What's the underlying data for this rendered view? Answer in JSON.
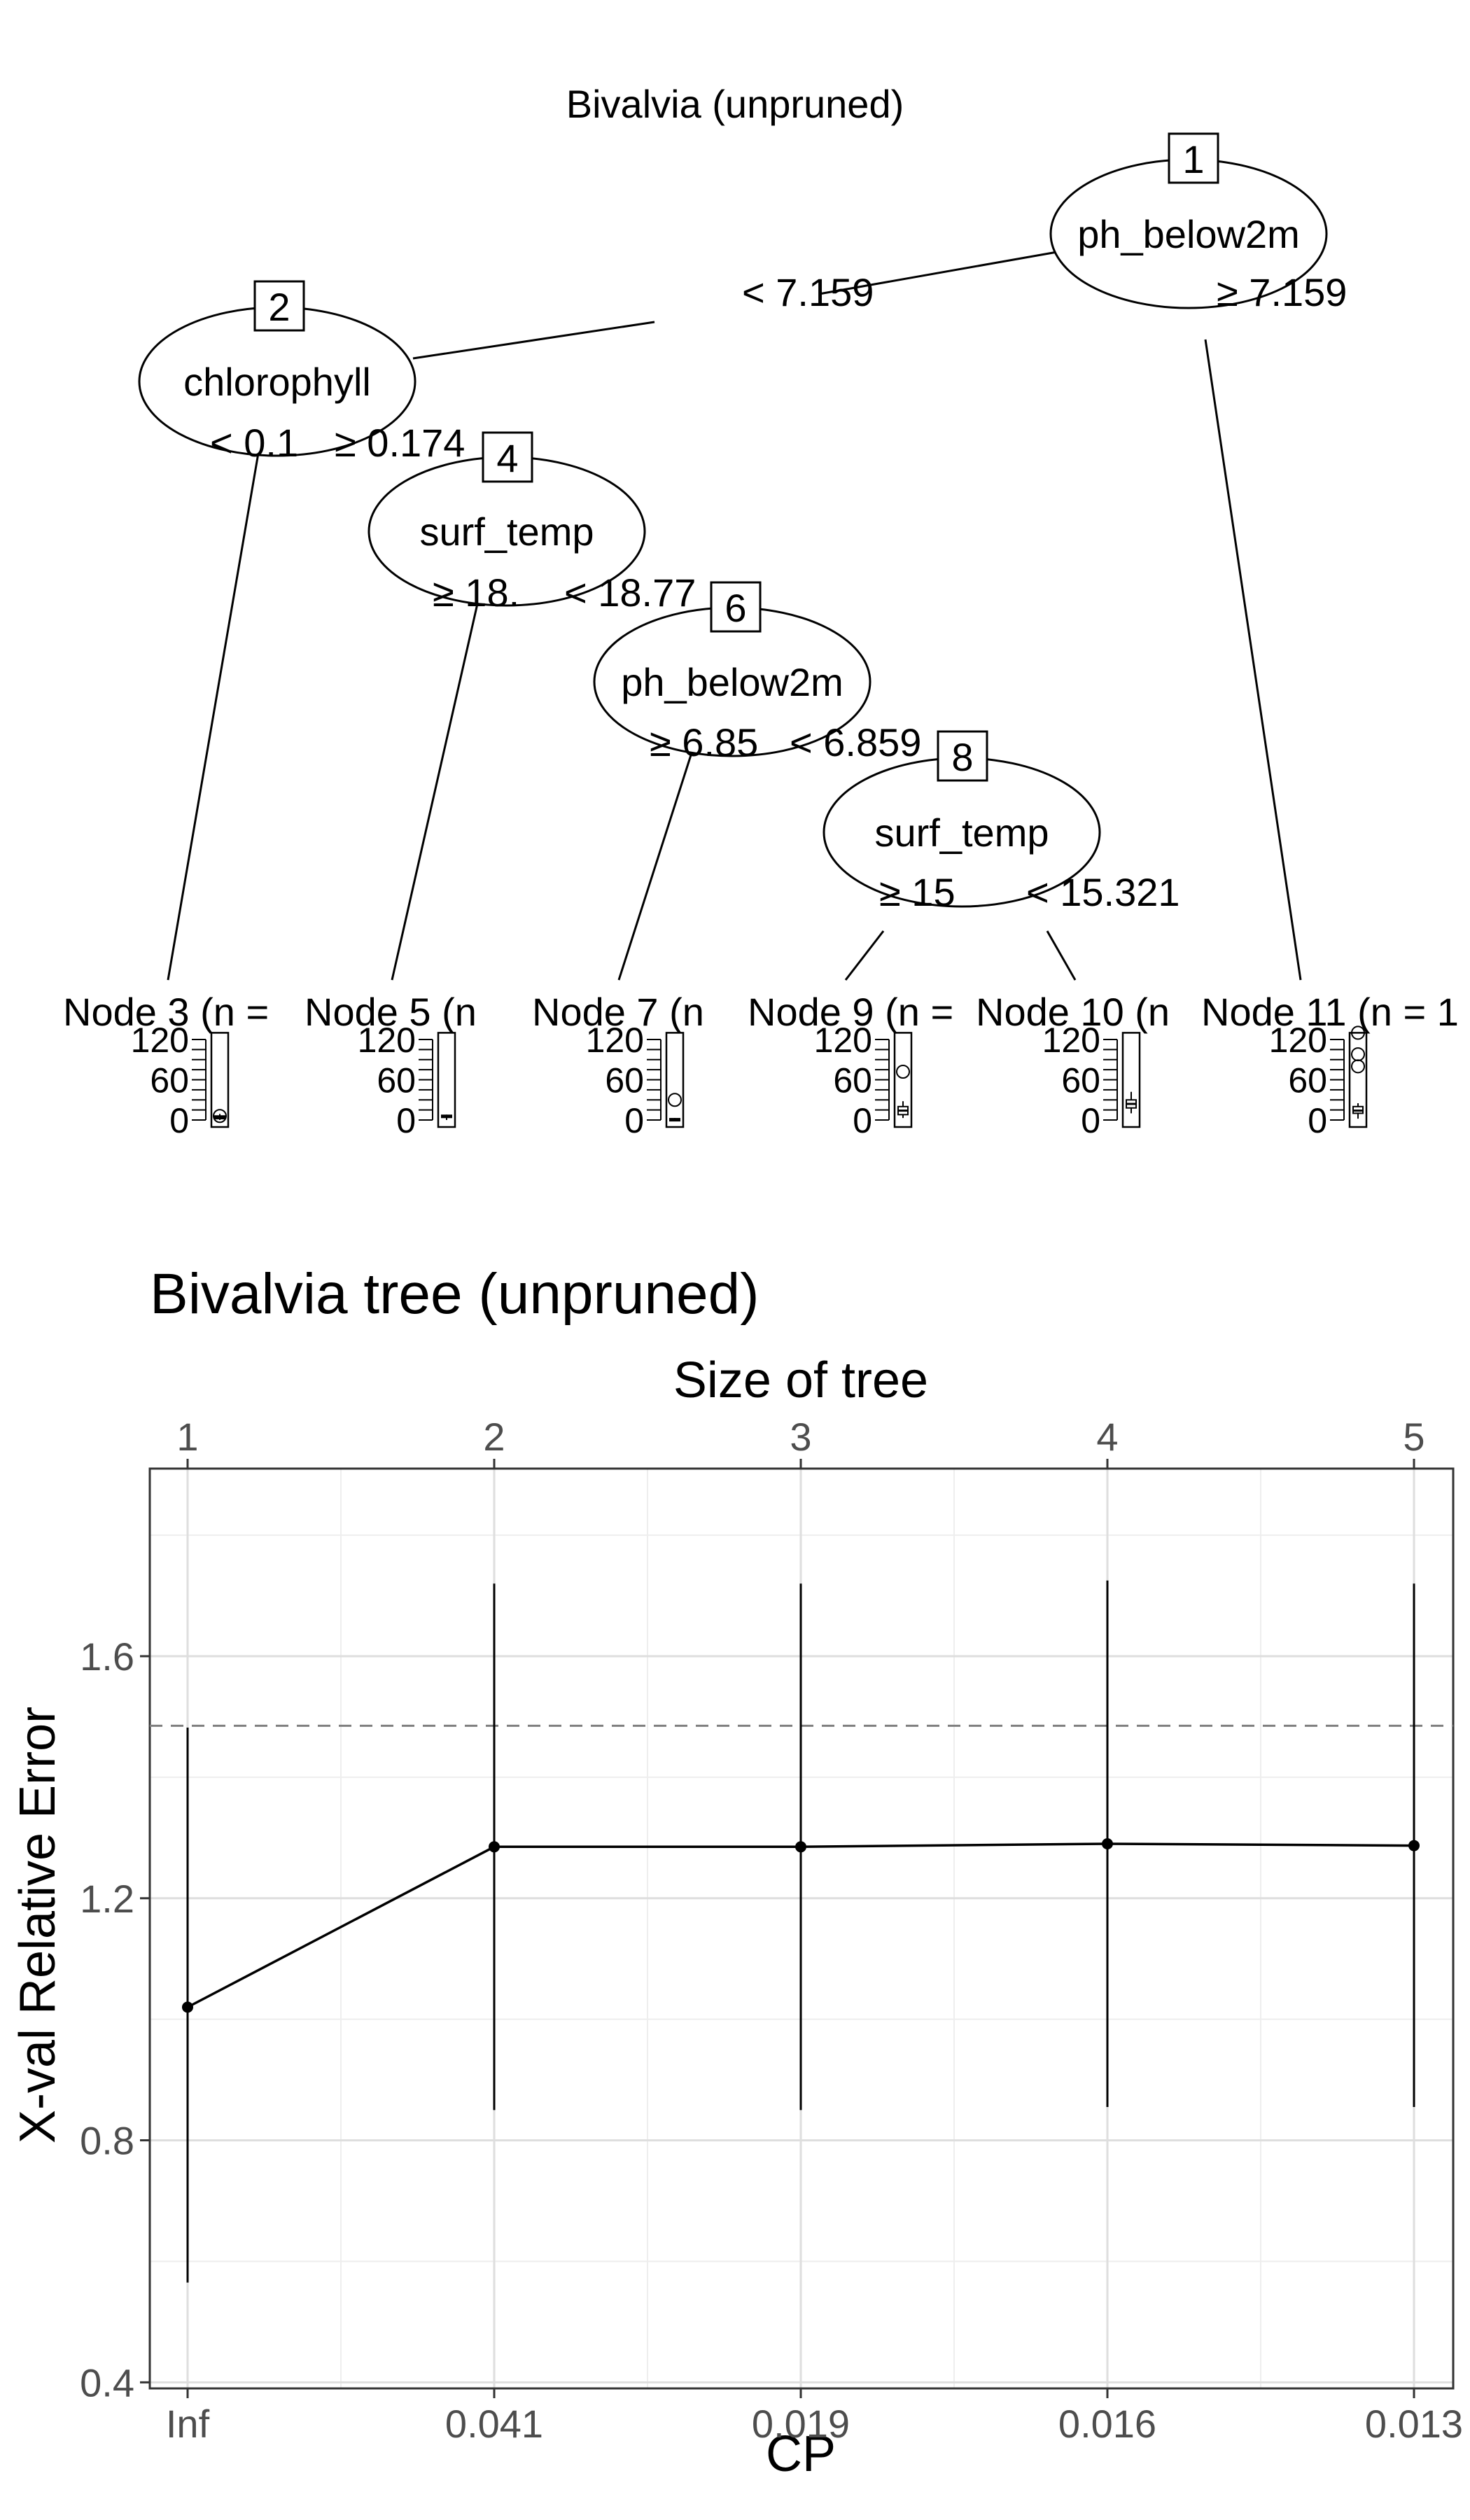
{
  "chart_data": [
    {
      "type": "tree",
      "title": "Bivalvia (unpruned)",
      "inner_nodes": [
        {
          "id": "1",
          "variable": "ph_below2m",
          "left_label": "< 7.159",
          "right_label": "≥ 7.159"
        },
        {
          "id": "2",
          "variable": "chlorophyll",
          "left_label": "< 0.1",
          "right_label": "≥ 0.174"
        },
        {
          "id": "4",
          "variable": "surf_temp",
          "left_label": "≥ 18.",
          "right_label": "< 18.77"
        },
        {
          "id": "6",
          "variable": "ph_below2m",
          "left_label": "≥ 6.85",
          "right_label": "< 6.859"
        },
        {
          "id": "8",
          "variable": "surf_temp",
          "left_label": "≥ 15",
          "right_label": "< 15.321"
        }
      ],
      "terminal_nodes": [
        {
          "label": "Node 3 (n =",
          "ticks": [
            "120",
            "60",
            "0"
          ],
          "box": {
            "low": 0,
            "q1": 2,
            "median": 4,
            "q3": 6,
            "high": 9
          },
          "outliers": [
            6
          ]
        },
        {
          "label": "Node 5 (n",
          "ticks": [
            "120",
            "60",
            "0"
          ],
          "box": {
            "low": 0,
            "q1": 5,
            "median": 6,
            "q3": 7,
            "high": 8
          },
          "outliers": []
        },
        {
          "label": "Node 7 (n",
          "ticks": [
            "120",
            "60",
            "0"
          ],
          "box": {
            "low": 0,
            "q1": 0,
            "median": 1,
            "q3": 2,
            "high": 3
          },
          "outliers": [
            30
          ]
        },
        {
          "label": "Node 9 (n =",
          "ticks": [
            "120",
            "60",
            "0"
          ],
          "box": {
            "low": 3,
            "q1": 8,
            "median": 14,
            "q3": 20,
            "high": 28
          },
          "outliers": [
            72
          ]
        },
        {
          "label": "Node 10 (n",
          "ticks": [
            "120",
            "60",
            "0"
          ],
          "box": {
            "low": 10,
            "q1": 18,
            "median": 24,
            "q3": 30,
            "high": 42
          },
          "outliers": []
        },
        {
          "label": "Node 11 (n = 1",
          "ticks": [
            "120",
            "60",
            "0"
          ],
          "box": {
            "low": 2,
            "q1": 10,
            "median": 14,
            "q3": 20,
            "high": 25
          },
          "outliers": [
            80,
            98,
            130
          ]
        }
      ]
    },
    {
      "type": "line",
      "title": "Bivalvia tree (unpruned)",
      "xlabel": "CP",
      "ylabel": "X-val Relative Error",
      "top_axis_title": "Size of tree",
      "x_categories": [
        "Inf",
        "0.041",
        "0.019",
        "0.016",
        "0.013"
      ],
      "top_ticks": [
        "1",
        "2",
        "3",
        "4",
        "5"
      ],
      "y_ticks": [
        "0.4",
        "0.8",
        "1.2",
        "1.6"
      ],
      "ylim": [
        0.39,
        1.91
      ],
      "series": [
        {
          "values": [
            1.02,
            1.285,
            1.285,
            1.29,
            1.287
          ],
          "err_low": [
            0.565,
            0.85,
            0.85,
            0.855,
            0.855
          ],
          "err_high": [
            1.482,
            1.72,
            1.72,
            1.725,
            1.72
          ]
        }
      ],
      "reference_line": 1.485,
      "grid": true
    }
  ]
}
